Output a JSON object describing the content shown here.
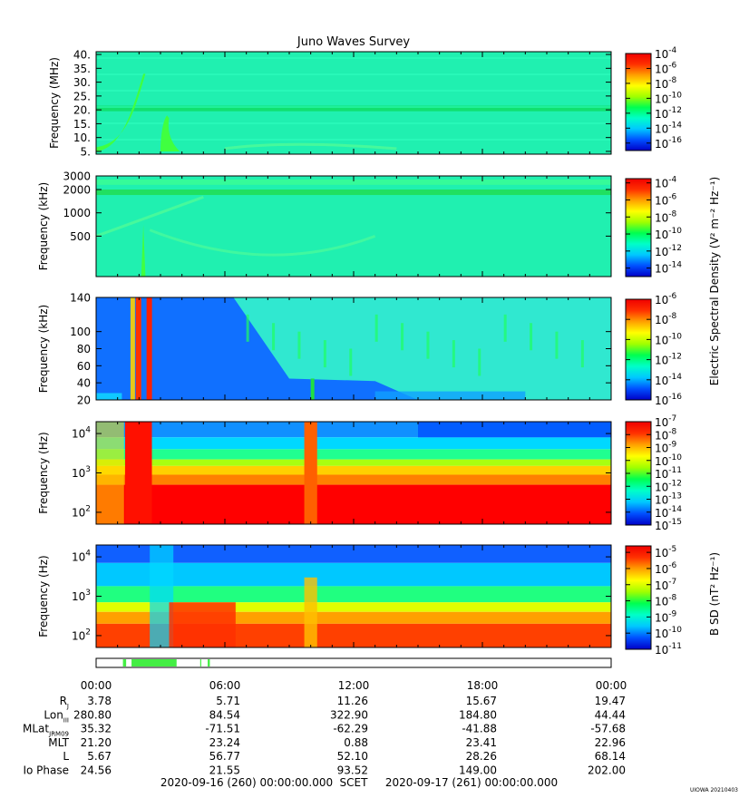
{
  "title": "Juno Waves Survey",
  "footer": {
    "start": "2020-09-16 (260) 00:00:00.000",
    "scet": "SCET",
    "end": "2020-09-17 (261) 00:00:00.000",
    "stamp": "UIOWA 20210403"
  },
  "colorbar_labels": {
    "electric": "Electric Spectral Density (V² m⁻² Hz⁻¹)",
    "magnetic": "B SD (nT² Hz⁻¹)"
  },
  "colors": {
    "jet": [
      "#0000c8",
      "#0050ff",
      "#00c8ff",
      "#00ffc8",
      "#00ff50",
      "#a0ff00",
      "#ffff00",
      "#ffa000",
      "#ff3000",
      "#f00000"
    ],
    "low_band": "#00d0ff",
    "high_band": "#20e8a0",
    "gap_bar": "#44ee44"
  },
  "chart_data": [
    {
      "type": "heatmap",
      "panel": "HFR high",
      "ylabel": "Frequency (MHz)",
      "yscale": "linear",
      "ylim": [
        4,
        41
      ],
      "yticks": [
        {
          "v": 5,
          "t": "5."
        },
        {
          "v": 10,
          "t": "10."
        },
        {
          "v": 15,
          "t": "15."
        },
        {
          "v": 20,
          "t": "20."
        },
        {
          "v": 25,
          "t": "25."
        },
        {
          "v": 30,
          "t": "30."
        },
        {
          "v": 35,
          "t": "35."
        },
        {
          "v": 40,
          "t": "40."
        }
      ],
      "colorbar": {
        "min": -17,
        "max": -4,
        "ticks": [
          {
            "e": -4,
            "t": "-4"
          },
          {
            "e": -6,
            "t": "-6"
          },
          {
            "e": -8,
            "t": "-8"
          },
          {
            "e": -10,
            "t": "-10"
          },
          {
            "e": -12,
            "t": "-12"
          },
          {
            "e": -14,
            "t": "-14"
          },
          {
            "e": -16,
            "t": "-16"
          }
        ]
      }
    },
    {
      "type": "heatmap",
      "panel": "HFR low",
      "ylabel": "Frequency (kHz)",
      "yscale": "log",
      "ylim": [
        150,
        3000
      ],
      "yticks": [
        {
          "v": 500,
          "t": "500"
        },
        {
          "v": 1000,
          "t": "1000"
        },
        {
          "v": 2000,
          "t": "2000"
        },
        {
          "v": 3000,
          "t": "3000"
        }
      ],
      "colorbar": {
        "min": -15,
        "max": -3.5,
        "ticks": [
          {
            "e": -4,
            "t": "-4"
          },
          {
            "e": -6,
            "t": "-6"
          },
          {
            "e": -8,
            "t": "-8"
          },
          {
            "e": -10,
            "t": "-10"
          },
          {
            "e": -12,
            "t": "-12"
          },
          {
            "e": -14,
            "t": "-14"
          }
        ]
      }
    },
    {
      "type": "heatmap",
      "panel": "LFR high",
      "ylabel": "Frequency (kHz)",
      "yscale": "linear",
      "ylim": [
        20,
        140
      ],
      "yticks": [
        {
          "v": 20,
          "t": "20"
        },
        {
          "v": 40,
          "t": "40"
        },
        {
          "v": 60,
          "t": "60"
        },
        {
          "v": 80,
          "t": "80"
        },
        {
          "v": 100,
          "t": "100"
        },
        {
          "v": 140,
          "t": "140"
        }
      ],
      "colorbar": {
        "min": -16,
        "max": -6,
        "ticks": [
          {
            "e": -6,
            "t": "-6"
          },
          {
            "e": -8,
            "t": "-8"
          },
          {
            "e": -10,
            "t": "-10"
          },
          {
            "e": -12,
            "t": "-12"
          },
          {
            "e": -14,
            "t": "-14"
          },
          {
            "e": -16,
            "t": "-16"
          }
        ]
      }
    },
    {
      "type": "heatmap",
      "panel": "LFR electric",
      "ylabel": "Frequency (Hz)",
      "yscale": "log",
      "ylim": [
        50,
        20000
      ],
      "yticks": [
        {
          "v": 100,
          "t": "10",
          "sup": "2"
        },
        {
          "v": 1000,
          "t": "10",
          "sup": "3"
        },
        {
          "v": 10000,
          "t": "10",
          "sup": "4"
        }
      ],
      "colorbar": {
        "min": -15,
        "max": -7,
        "ticks": [
          {
            "e": -7,
            "t": "-7"
          },
          {
            "e": -8,
            "t": "-8"
          },
          {
            "e": -9,
            "t": "-9"
          },
          {
            "e": -10,
            "t": "-10"
          },
          {
            "e": -11,
            "t": "-11"
          },
          {
            "e": -12,
            "t": "-12"
          },
          {
            "e": -13,
            "t": "-13"
          },
          {
            "e": -14,
            "t": "-14"
          },
          {
            "e": -15,
            "t": "-15"
          }
        ]
      }
    },
    {
      "type": "heatmap",
      "panel": "LFR magnetic",
      "ylabel": "Frequency (Hz)",
      "yscale": "log",
      "ylim": [
        50,
        20000
      ],
      "yticks": [
        {
          "v": 100,
          "t": "10",
          "sup": "2"
        },
        {
          "v": 1000,
          "t": "10",
          "sup": "3"
        },
        {
          "v": 10000,
          "t": "10",
          "sup": "4"
        }
      ],
      "colorbar": {
        "min": -11,
        "max": -4.6,
        "ticks": [
          {
            "e": -5,
            "t": "-5"
          },
          {
            "e": -6,
            "t": "-6"
          },
          {
            "e": -7,
            "t": "-7"
          },
          {
            "e": -8,
            "t": "-8"
          },
          {
            "e": -9,
            "t": "-9"
          },
          {
            "e": -10,
            "t": "-10"
          },
          {
            "e": -11,
            "t": "-11"
          }
        ]
      }
    }
  ],
  "mode_bar": {
    "segments_hours": [
      [
        1.25,
        1.4
      ],
      [
        1.65,
        3.75
      ],
      [
        4.85,
        4.9
      ],
      [
        5.2,
        5.3
      ]
    ]
  },
  "time_axis": {
    "range_hours": [
      0,
      24
    ],
    "ticks": [
      {
        "h": 0,
        "t": "00:00"
      },
      {
        "h": 6,
        "t": "06:00"
      },
      {
        "h": 12,
        "t": "12:00"
      },
      {
        "h": 18,
        "t": "18:00"
      },
      {
        "h": 24,
        "t": "00:00"
      }
    ]
  },
  "ephemeris": [
    {
      "label": "R",
      "sub": "J",
      "values": [
        "3.78",
        "5.71",
        "11.26",
        "15.67",
        "19.47"
      ]
    },
    {
      "label": "Lon",
      "sub": "III",
      "values": [
        "280.80",
        "84.54",
        "322.90",
        "184.80",
        "44.44"
      ]
    },
    {
      "label": "MLat",
      "sub": "JRM09",
      "values": [
        "35.32",
        "-71.51",
        "-62.29",
        "-41.88",
        "-57.68"
      ]
    },
    {
      "label": "MLT",
      "sub": "",
      "values": [
        "21.20",
        "23.24",
        "0.88",
        "23.41",
        "22.96"
      ]
    },
    {
      "label": "L",
      "sub": "",
      "values": [
        "5.67",
        "56.77",
        "52.10",
        "28.26",
        "68.14"
      ]
    },
    {
      "label": "Io Phase",
      "sub": "",
      "values": [
        "24.56",
        "21.55",
        "93.52",
        "149.00",
        "202.00"
      ]
    }
  ]
}
